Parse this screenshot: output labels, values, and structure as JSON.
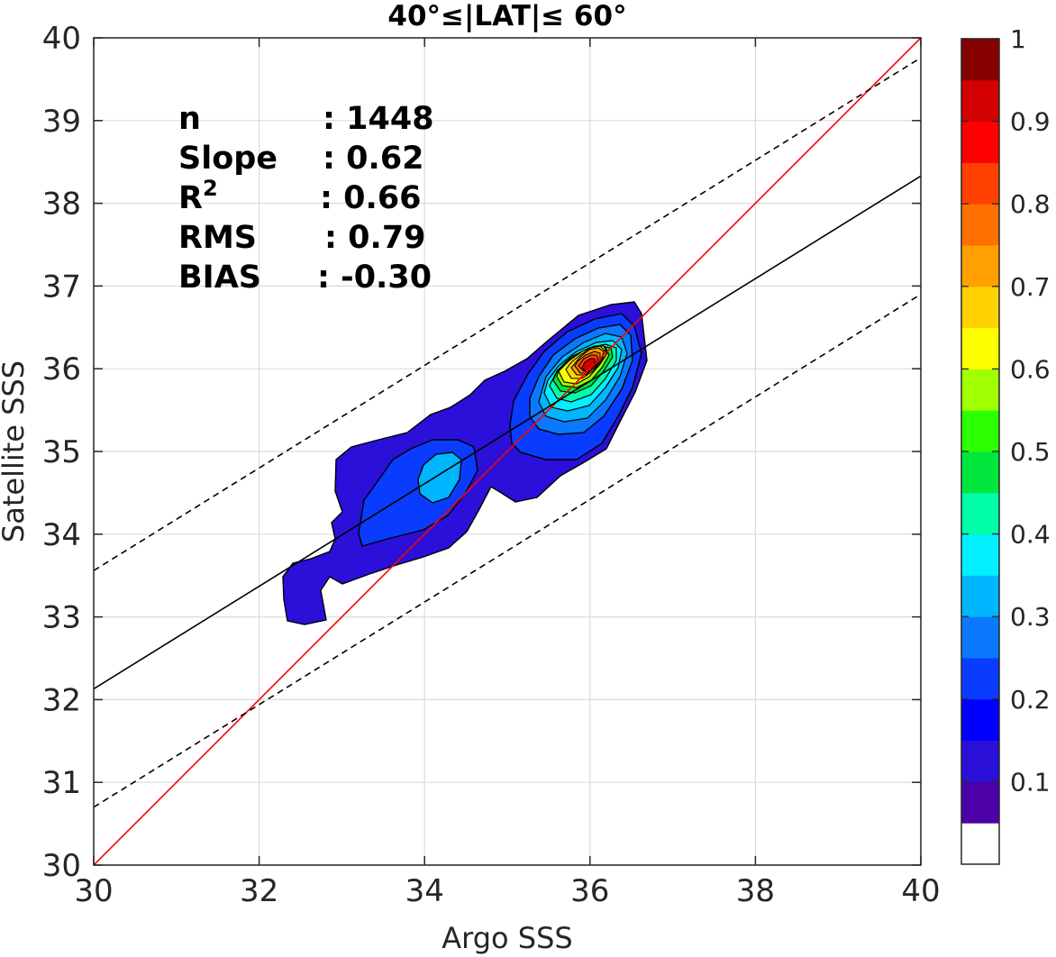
{
  "chart_data": {
    "type": "contour",
    "title": "40°≤|LAT|≤ 60°",
    "xlabel": "Argo SSS",
    "ylabel": "Satellite SSS",
    "xlim": [
      30,
      40
    ],
    "ylim": [
      30,
      40
    ],
    "xticks": [
      "30",
      "32",
      "34",
      "36",
      "38",
      "40"
    ],
    "yticks": [
      "30",
      "31",
      "32",
      "33",
      "34",
      "35",
      "36",
      "37",
      "38",
      "39",
      "40"
    ],
    "grid": true,
    "stats": [
      {
        "key": "n",
        "value": ": 1448"
      },
      {
        "key": "Slope",
        "value": ": 0.62"
      },
      {
        "key": "R",
        "sup": "2",
        "value": ": 0.66"
      },
      {
        "key": "RMS",
        "value": ": 0.79"
      },
      {
        "key": "BIAS",
        "value": ": -0.30"
      }
    ],
    "lines": [
      {
        "role": "one-to-one",
        "color": "#ff0000",
        "style": "solid",
        "points": [
          [
            30,
            30
          ],
          [
            40,
            40
          ]
        ]
      },
      {
        "role": "regression",
        "color": "#000000",
        "style": "solid",
        "points": [
          [
            30,
            32.13
          ],
          [
            40,
            38.33
          ]
        ]
      },
      {
        "role": "regression-upper",
        "color": "#000000",
        "style": "dashed",
        "points": [
          [
            30,
            33.56
          ],
          [
            40,
            39.76
          ]
        ]
      },
      {
        "role": "regression-lower",
        "color": "#000000",
        "style": "dashed",
        "points": [
          [
            30,
            30.7
          ],
          [
            40,
            36.9
          ]
        ]
      }
    ],
    "density_peaks": [
      {
        "x": 36.05,
        "y": 36.0,
        "level": 0.95
      },
      {
        "x": 34.2,
        "y": 34.6,
        "level": 0.32
      }
    ],
    "colorbar": {
      "ticks": [
        "0.1",
        "0.2",
        "0.3",
        "0.4",
        "0.5",
        "0.6",
        "0.7",
        "0.8",
        "0.9",
        "1"
      ],
      "colors": [
        "#ffffff",
        "#4b00a8",
        "#2a10d8",
        "#0000ff",
        "#0a3cff",
        "#0a78ff",
        "#00b6ff",
        "#00f0ff",
        "#00ffa8",
        "#00e63c",
        "#2cff00",
        "#a0ff00",
        "#ffff00",
        "#ffd200",
        "#ffa000",
        "#ff7000",
        "#ff4000",
        "#ff0000",
        "#d20000",
        "#860000"
      ]
    }
  }
}
